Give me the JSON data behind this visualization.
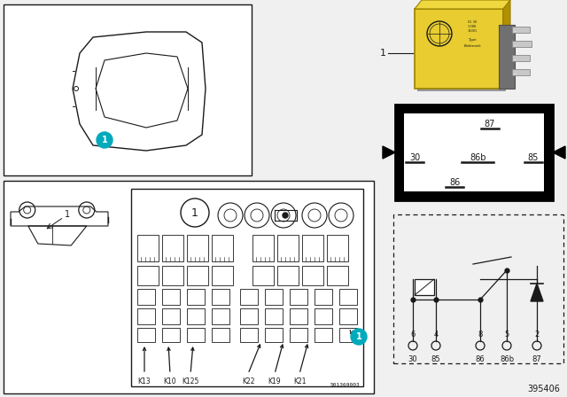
{
  "bg_color": "#f0f0f0",
  "figure_num": "395406",
  "part_num": "501369003",
  "fuse_box_labels": [
    "K13",
    "K10",
    "K125",
    "K22",
    "K19",
    "K21"
  ],
  "schematic_pins_top": [
    "6",
    "4",
    "8",
    "5",
    "2"
  ],
  "schematic_labels_bot": [
    "30",
    "85",
    "86",
    "86b",
    "87"
  ],
  "cyan_color": "#00AABC",
  "relay_yellow": "#D4B800",
  "relay_yellow2": "#E8CC30",
  "line_color": "#1a1a1a",
  "dark_gray": "#555555",
  "med_gray": "#888888",
  "light_gray": "#cccccc",
  "white": "#ffffff",
  "black": "#000000"
}
